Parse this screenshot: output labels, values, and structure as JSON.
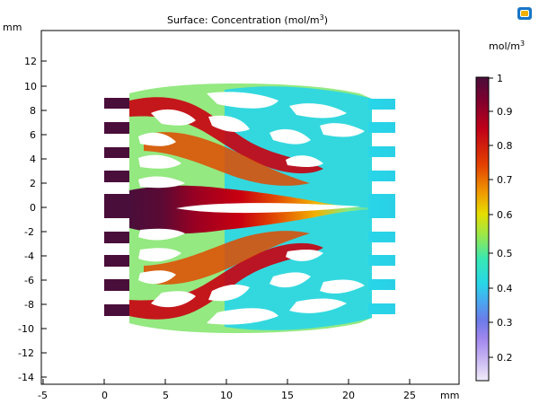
{
  "plot": {
    "title_main": "Surface: Concentration (mol/m",
    "title_sup": "3",
    "title_tail": ")",
    "y_unit": "mm",
    "x_unit": "mm",
    "x_ticks": [
      "-5",
      "0",
      "5",
      "10",
      "15",
      "20",
      "25"
    ],
    "y_ticks": [
      "12",
      "10",
      "8",
      "6",
      "4",
      "2",
      "0",
      "-2",
      "-4",
      "-6",
      "-8",
      "-10",
      "-12",
      "-14"
    ],
    "toolbar_icon": "render-icon"
  },
  "colorbar": {
    "unit_main": "mol/m",
    "unit_sup": "3",
    "ticks": [
      "1",
      "0.9",
      "0.8",
      "0.7",
      "0.6",
      "0.5",
      "0.4",
      "0.3",
      "0.2"
    ],
    "colors": [
      "#4a0e3a",
      "#7a0030",
      "#c00018",
      "#e34200",
      "#f09a00",
      "#e6dd00",
      "#9be84a",
      "#37e8b4",
      "#28d6e8",
      "#4aa7f0",
      "#6a7be8",
      "#9f86ee",
      "#c8b6f2",
      "#f0ecfa"
    ]
  }
}
